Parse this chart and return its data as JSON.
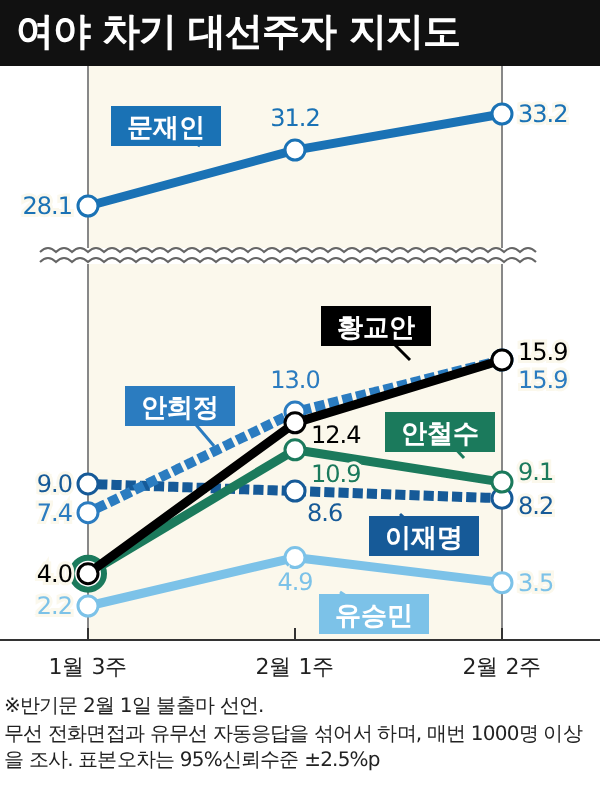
{
  "chart_data": [
    {
      "type": "line",
      "title": "여야 차기 대선주자 지지도",
      "categories": [
        "1월 3주",
        "2월 1주",
        "2월 2주"
      ],
      "marker": "circle",
      "tick_labels": false,
      "series": [
        {
          "name": "문재인",
          "color": "#1a72b5",
          "values": [
            28.1,
            31.2,
            33.2
          ],
          "value_labels": [
            "28.1",
            "31.2",
            "33.2"
          ],
          "line_style": "solid"
        }
      ]
    },
    {
      "type": "line",
      "categories": [
        "1월 3주",
        "2월 1주",
        "2월 2주"
      ],
      "marker": "circle",
      "series": [
        {
          "name": "황교안",
          "color": "#000000",
          "values": [
            4.0,
            12.4,
            15.9
          ],
          "value_labels": [
            "4.0",
            "12.4",
            "15.9"
          ],
          "line_style": "solid"
        },
        {
          "name": "안희정",
          "color": "#2b7cc0",
          "values": [
            7.4,
            13.0,
            15.9
          ],
          "value_labels": [
            "7.4",
            "13.0",
            "15.9"
          ],
          "line_style": "dotted"
        },
        {
          "name": "안철수",
          "color": "#1b7a5c",
          "values": [
            4.0,
            10.9,
            9.1
          ],
          "value_labels": [
            null,
            "10.9",
            "9.1"
          ],
          "line_style": "solid"
        },
        {
          "name": "이재명",
          "color": "#165a98",
          "values": [
            9.0,
            8.6,
            8.2
          ],
          "value_labels": [
            "9.0",
            "8.6",
            "8.2"
          ],
          "line_style": "dotted"
        },
        {
          "name": "유승민",
          "color": "#7cc2e8",
          "values": [
            2.2,
            4.9,
            3.5
          ],
          "value_labels": [
            "2.2",
            "4.9",
            "3.5"
          ],
          "line_style": "solid"
        }
      ],
      "annotations": [
        "※반기문 2월 1일 불출마 선언.",
        "무선 전화면접과 유무선 자동응답을 섞어서 하며, 매번 1000명 이상을 조사. 표본오차는 95%신뢰수준 ±2.5%p"
      ]
    }
  ]
}
